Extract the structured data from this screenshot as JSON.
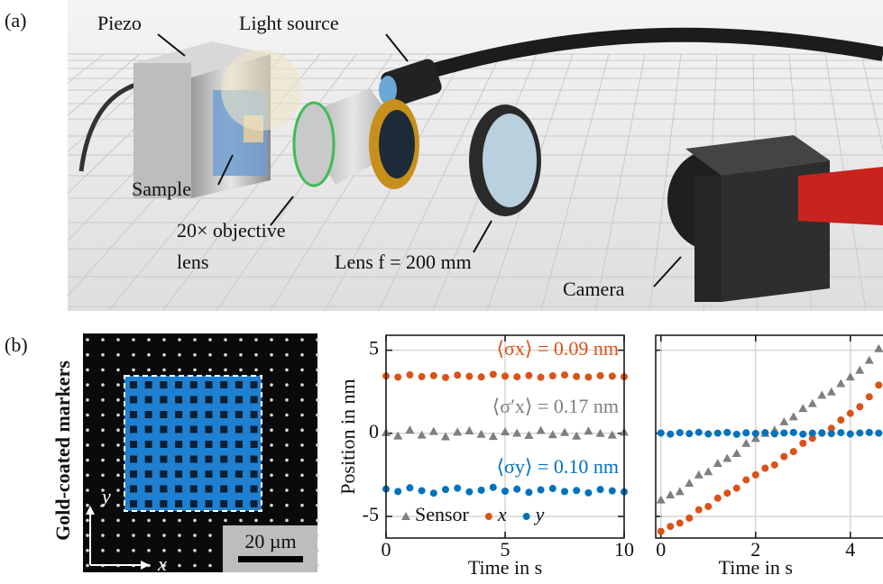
{
  "panel_a": {
    "label": "(a)",
    "piezo": "Piezo",
    "light_source": "Light source",
    "sample": "Sample",
    "objective_line1": "20× objective",
    "objective_line2": "lens",
    "lens": "Lens f = 200 mm",
    "camera": "Camera"
  },
  "panel_b": {
    "label": "(b)",
    "side_label": "Gold-coated markers",
    "scale_bar": "20 µm",
    "axis_x": "x",
    "axis_y": "y"
  },
  "chart_data": [
    {
      "type": "scatter",
      "xlabel": "Time in s",
      "ylabel": "Position in nm",
      "x": [
        0,
        0.5,
        1,
        1.5,
        2,
        2.5,
        3,
        3.5,
        4,
        4.5,
        5,
        5.5,
        6,
        6.5,
        7,
        7.5,
        8,
        8.5,
        9,
        9.5,
        10
      ],
      "xlim": [
        0,
        10
      ],
      "xticks": [
        0,
        5,
        10
      ],
      "ylim": [
        -6.3,
        5.9
      ],
      "yticks": [
        -5,
        0,
        5
      ],
      "grid": true,
      "legend": "bottom",
      "series": [
        {
          "name": "Sensor",
          "color": "#7f7f7f",
          "marker": "triangle",
          "values": [
            0.05,
            -0.15,
            0.2,
            -0.1,
            0.12,
            -0.2,
            0.08,
            0.15,
            -0.05,
            -0.18,
            0.1,
            0.02,
            -0.12,
            0.18,
            -0.08,
            0.06,
            -0.16,
            0.14,
            0,
            -0.1,
            0.08
          ]
        },
        {
          "name": "x",
          "color": "#d95319",
          "marker": "circle",
          "values": [
            3.45,
            3.38,
            3.52,
            3.41,
            3.47,
            3.36,
            3.5,
            3.43,
            3.39,
            3.55,
            3.44,
            3.4,
            3.48,
            3.37,
            3.46,
            3.51,
            3.42,
            3.38,
            3.47,
            3.44,
            3.4
          ]
        },
        {
          "name": "y",
          "color": "#0072bd",
          "marker": "circle",
          "values": [
            -3.35,
            -3.5,
            -3.28,
            -3.45,
            -3.6,
            -3.38,
            -3.3,
            -3.52,
            -3.42,
            -3.25,
            -3.48,
            -3.36,
            -3.55,
            -3.4,
            -3.32,
            -3.5,
            -3.44,
            -3.58,
            -3.38,
            -3.46,
            -3.52
          ]
        }
      ],
      "annotations": [
        {
          "text": "⟨σx⟩ = 0.09 nm",
          "color": "#d95319"
        },
        {
          "text": "⟨σ′x⟩ = 0.17 nm",
          "color": "#7f7f7f"
        },
        {
          "text": "⟨σy⟩ = 0.10 nm",
          "color": "#0072bd"
        }
      ]
    },
    {
      "type": "scatter",
      "xlabel": "Time in s",
      "x": [
        0,
        0.2,
        0.4,
        0.6,
        0.8,
        1,
        1.2,
        1.4,
        1.6,
        1.8,
        2,
        2.2,
        2.4,
        2.6,
        2.8,
        3,
        3.2,
        3.4,
        3.6,
        3.8,
        4,
        4.2,
        4.4,
        4.6
      ],
      "xlim": [
        -0.11,
        4.69
      ],
      "xticks": [
        0,
        2,
        4
      ],
      "ylim": [
        -6.3,
        5.9
      ],
      "yticks": [
        -5,
        0,
        5
      ],
      "grid": true,
      "series": [
        {
          "color": "#7f7f7f",
          "marker": "triangle",
          "values": [
            -4,
            -3.7,
            -3.5,
            -3,
            -2.5,
            -2.3,
            -1.8,
            -1.5,
            -1.2,
            -0.6,
            -0.3,
            0,
            0.2,
            0.7,
            1,
            1.5,
            1.8,
            2.3,
            2.5,
            3,
            3.4,
            3.8,
            4.4,
            5.1
          ]
        },
        {
          "color": "#d95319",
          "marker": "circle",
          "values": [
            -5.9,
            -5.6,
            -5.4,
            -5.1,
            -4.6,
            -4.4,
            -3.9,
            -3.6,
            -3.3,
            -2.8,
            -2.5,
            -2.1,
            -1.9,
            -1.4,
            -1.1,
            -0.6,
            -0.3,
            0,
            0.3,
            0.8,
            1.2,
            1.6,
            2.2,
            2.9
          ]
        },
        {
          "color": "#0072bd",
          "marker": "circle",
          "values": [
            0.02,
            -0.05,
            0.04,
            -0.02,
            0.06,
            -0.04,
            0.01,
            0.05,
            -0.06,
            0.03,
            -0.01,
            0.04,
            -0.03,
            0.02,
            0.05,
            -0.05,
            0.01,
            0.03,
            -0.02,
            0.04,
            -0.04,
            0.02,
            0.05,
            0.01
          ]
        }
      ]
    }
  ]
}
